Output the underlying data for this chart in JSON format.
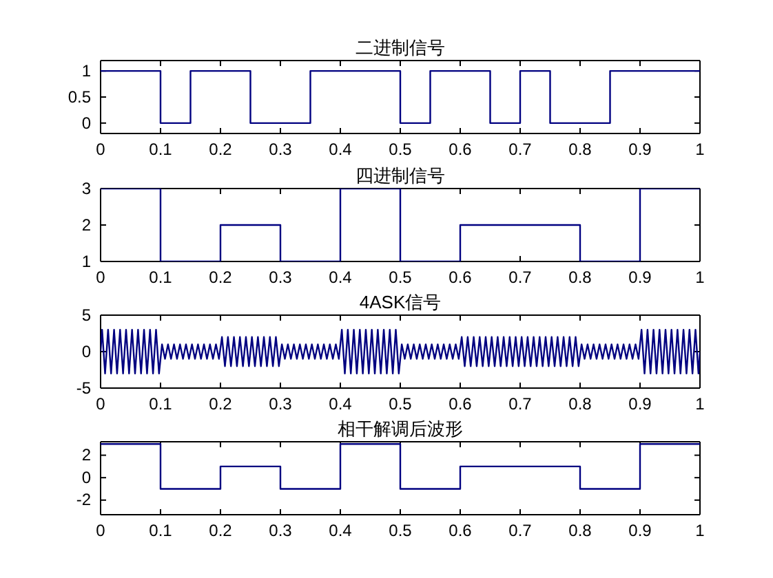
{
  "chart_data": [
    {
      "type": "step",
      "title": "二进制信号",
      "color": "#000080",
      "x": [
        0,
        0.1,
        0.15,
        0.25,
        0.35,
        0.5,
        0.55,
        0.65,
        0.7,
        0.75,
        0.85,
        1
      ],
      "values": [
        1,
        0,
        1,
        0,
        1,
        0,
        1,
        0,
        1,
        0,
        1,
        1
      ],
      "xlim": [
        0,
        1
      ],
      "xticks": [
        0,
        0.1,
        0.2,
        0.3,
        0.4,
        0.5,
        0.6,
        0.7,
        0.8,
        0.9,
        1
      ],
      "ylim": [
        -0.2,
        1.2
      ],
      "yticks": [
        0,
        0.5,
        1
      ]
    },
    {
      "type": "step",
      "title": "四进制信号",
      "color": "#000080",
      "x": [
        0,
        0.1,
        0.2,
        0.3,
        0.4,
        0.5,
        0.6,
        0.7,
        0.8,
        0.9,
        1
      ],
      "values": [
        3,
        1,
        2,
        1,
        3,
        1,
        2,
        2,
        1,
        3,
        3
      ],
      "xlim": [
        0,
        1
      ],
      "xticks": [
        0,
        0.1,
        0.2,
        0.3,
        0.4,
        0.5,
        0.6,
        0.7,
        0.8,
        0.9,
        1
      ],
      "ylim": [
        1,
        3
      ],
      "yticks": [
        1,
        2,
        3
      ]
    },
    {
      "type": "line",
      "title": "4ASK信号",
      "color": "#000080",
      "x": [
        0,
        0.0025,
        0.0075,
        0.0125,
        0.0175,
        0.0225,
        0.0275,
        0.0325,
        0.0375,
        0.0425,
        0.0475,
        0.0525,
        0.0575,
        0.0625,
        0.0675,
        0.0725,
        0.0775,
        0.0825,
        0.0875,
        0.0925,
        0.0975,
        0.1025,
        0.1075,
        0.1125,
        0.1175,
        0.1225,
        0.1275,
        0.1325,
        0.1375,
        0.1425,
        0.1475,
        0.1525,
        0.1575,
        0.1625,
        0.1675,
        0.1725,
        0.1775,
        0.1825,
        0.1875,
        0.1925,
        0.1975,
        0.2025,
        0.2075,
        0.2125,
        0.2175,
        0.2225,
        0.2275,
        0.2325,
        0.2375,
        0.2425,
        0.2475,
        0.2525,
        0.2575,
        0.2625,
        0.2675,
        0.2725,
        0.2775,
        0.2825,
        0.2875,
        0.2925,
        0.2975,
        0.3025,
        0.3075,
        0.3125,
        0.3175,
        0.3225,
        0.3275,
        0.3325,
        0.3375,
        0.3425,
        0.3475,
        0.3525,
        0.3575,
        0.3625,
        0.3675,
        0.3725,
        0.3775,
        0.3825,
        0.3875,
        0.3925,
        0.3975,
        0.4025,
        0.4075,
        0.4125,
        0.4175,
        0.4225,
        0.4275,
        0.4325,
        0.4375,
        0.4425,
        0.4475,
        0.4525,
        0.4575,
        0.4625,
        0.4675,
        0.4725,
        0.4775,
        0.4825,
        0.4875,
        0.4925,
        0.4975,
        0.5025,
        0.5075,
        0.5125,
        0.5175,
        0.5225,
        0.5275,
        0.5325,
        0.5375,
        0.5425,
        0.5475,
        0.5525,
        0.5575,
        0.5625,
        0.5675,
        0.5725,
        0.5775,
        0.5825,
        0.5875,
        0.5925,
        0.5975,
        0.6025,
        0.6075,
        0.6125,
        0.6175,
        0.6225,
        0.6275,
        0.6325,
        0.6375,
        0.6425,
        0.6475,
        0.6525,
        0.6575,
        0.6625,
        0.6675,
        0.6725,
        0.6775,
        0.6825,
        0.6875,
        0.6925,
        0.6975,
        0.7025,
        0.7075,
        0.7125,
        0.7175,
        0.7225,
        0.7275,
        0.7325,
        0.7375,
        0.7425,
        0.7475,
        0.7525,
        0.7575,
        0.7625,
        0.7675,
        0.7725,
        0.7775,
        0.7825,
        0.7875,
        0.7925,
        0.7975,
        0.8025,
        0.8075,
        0.8125,
        0.8175,
        0.8225,
        0.8275,
        0.8325,
        0.8375,
        0.8425,
        0.8475,
        0.8525,
        0.8575,
        0.8625,
        0.8675,
        0.8725,
        0.8775,
        0.8825,
        0.8875,
        0.8925,
        0.8975,
        0.9025,
        0.9075,
        0.9125,
        0.9175,
        0.9225,
        0.9275,
        0.9325,
        0.9375,
        0.9425,
        0.9475,
        0.9525,
        0.9575,
        0.9625,
        0.9675,
        0.9725,
        0.9775,
        0.9825,
        0.9875,
        0.9925,
        0.9975,
        1
      ],
      "values": [
        0,
        3,
        -3,
        3,
        -3,
        3,
        -3,
        3,
        -3,
        3,
        -3,
        3,
        -3,
        3,
        -3,
        3,
        -3,
        3,
        -3,
        3,
        -3,
        1,
        -1,
        1,
        -1,
        1,
        -1,
        1,
        -1,
        1,
        -1,
        1,
        -1,
        1,
        -1,
        1,
        -1,
        1,
        -1,
        1,
        -1,
        2,
        -2,
        2,
        -2,
        2,
        -2,
        2,
        -2,
        2,
        -2,
        2,
        -2,
        2,
        -2,
        2,
        -2,
        2,
        -2,
        2,
        -2,
        1,
        -1,
        1,
        -1,
        1,
        -1,
        1,
        -1,
        1,
        -1,
        1,
        -1,
        1,
        -1,
        1,
        -1,
        1,
        -1,
        1,
        -1,
        3,
        -3,
        3,
        -3,
        3,
        -3,
        3,
        -3,
        3,
        -3,
        3,
        -3,
        3,
        -3,
        3,
        -3,
        3,
        -3,
        3,
        -3,
        1,
        -1,
        1,
        -1,
        1,
        -1,
        1,
        -1,
        1,
        -1,
        1,
        -1,
        1,
        -1,
        1,
        -1,
        1,
        -1,
        1,
        -1,
        2,
        -2,
        2,
        -2,
        2,
        -2,
        2,
        -2,
        2,
        -2,
        2,
        -2,
        2,
        -2,
        2,
        -2,
        2,
        -2,
        2,
        -2,
        2,
        -2,
        2,
        -2,
        2,
        -2,
        2,
        -2,
        2,
        -2,
        2,
        -2,
        2,
        -2,
        2,
        -2,
        2,
        -2,
        2,
        -2,
        1,
        -1,
        1,
        -1,
        1,
        -1,
        1,
        -1,
        1,
        -1,
        1,
        -1,
        1,
        -1,
        1,
        -1,
        1,
        -1,
        1,
        -1,
        3,
        -3,
        3,
        -3,
        3,
        -3,
        3,
        -3,
        3,
        -3,
        3,
        -3,
        3,
        -3,
        3,
        -3,
        3,
        -3,
        3,
        -3,
        0
      ],
      "xlim": [
        0,
        1
      ],
      "xticks": [
        0,
        0.1,
        0.2,
        0.3,
        0.4,
        0.5,
        0.6,
        0.7,
        0.8,
        0.9,
        1
      ],
      "ylim": [
        -5,
        5
      ],
      "yticks": [
        -5,
        0,
        5
      ]
    },
    {
      "type": "step",
      "title": "相干解调后波形",
      "color": "#000080",
      "x": [
        0,
        0.1,
        0.2,
        0.3,
        0.4,
        0.5,
        0.6,
        0.7,
        0.8,
        0.9,
        1
      ],
      "values": [
        3,
        -1,
        1,
        -1,
        3,
        -1,
        1,
        1,
        -1,
        3,
        3
      ],
      "xlim": [
        0,
        1
      ],
      "xticks": [
        0,
        0.1,
        0.2,
        0.3,
        0.4,
        0.5,
        0.6,
        0.7,
        0.8,
        0.9,
        1
      ],
      "ylim": [
        -3.3,
        3.2
      ],
      "yticks": [
        -2,
        0,
        2
      ]
    }
  ]
}
